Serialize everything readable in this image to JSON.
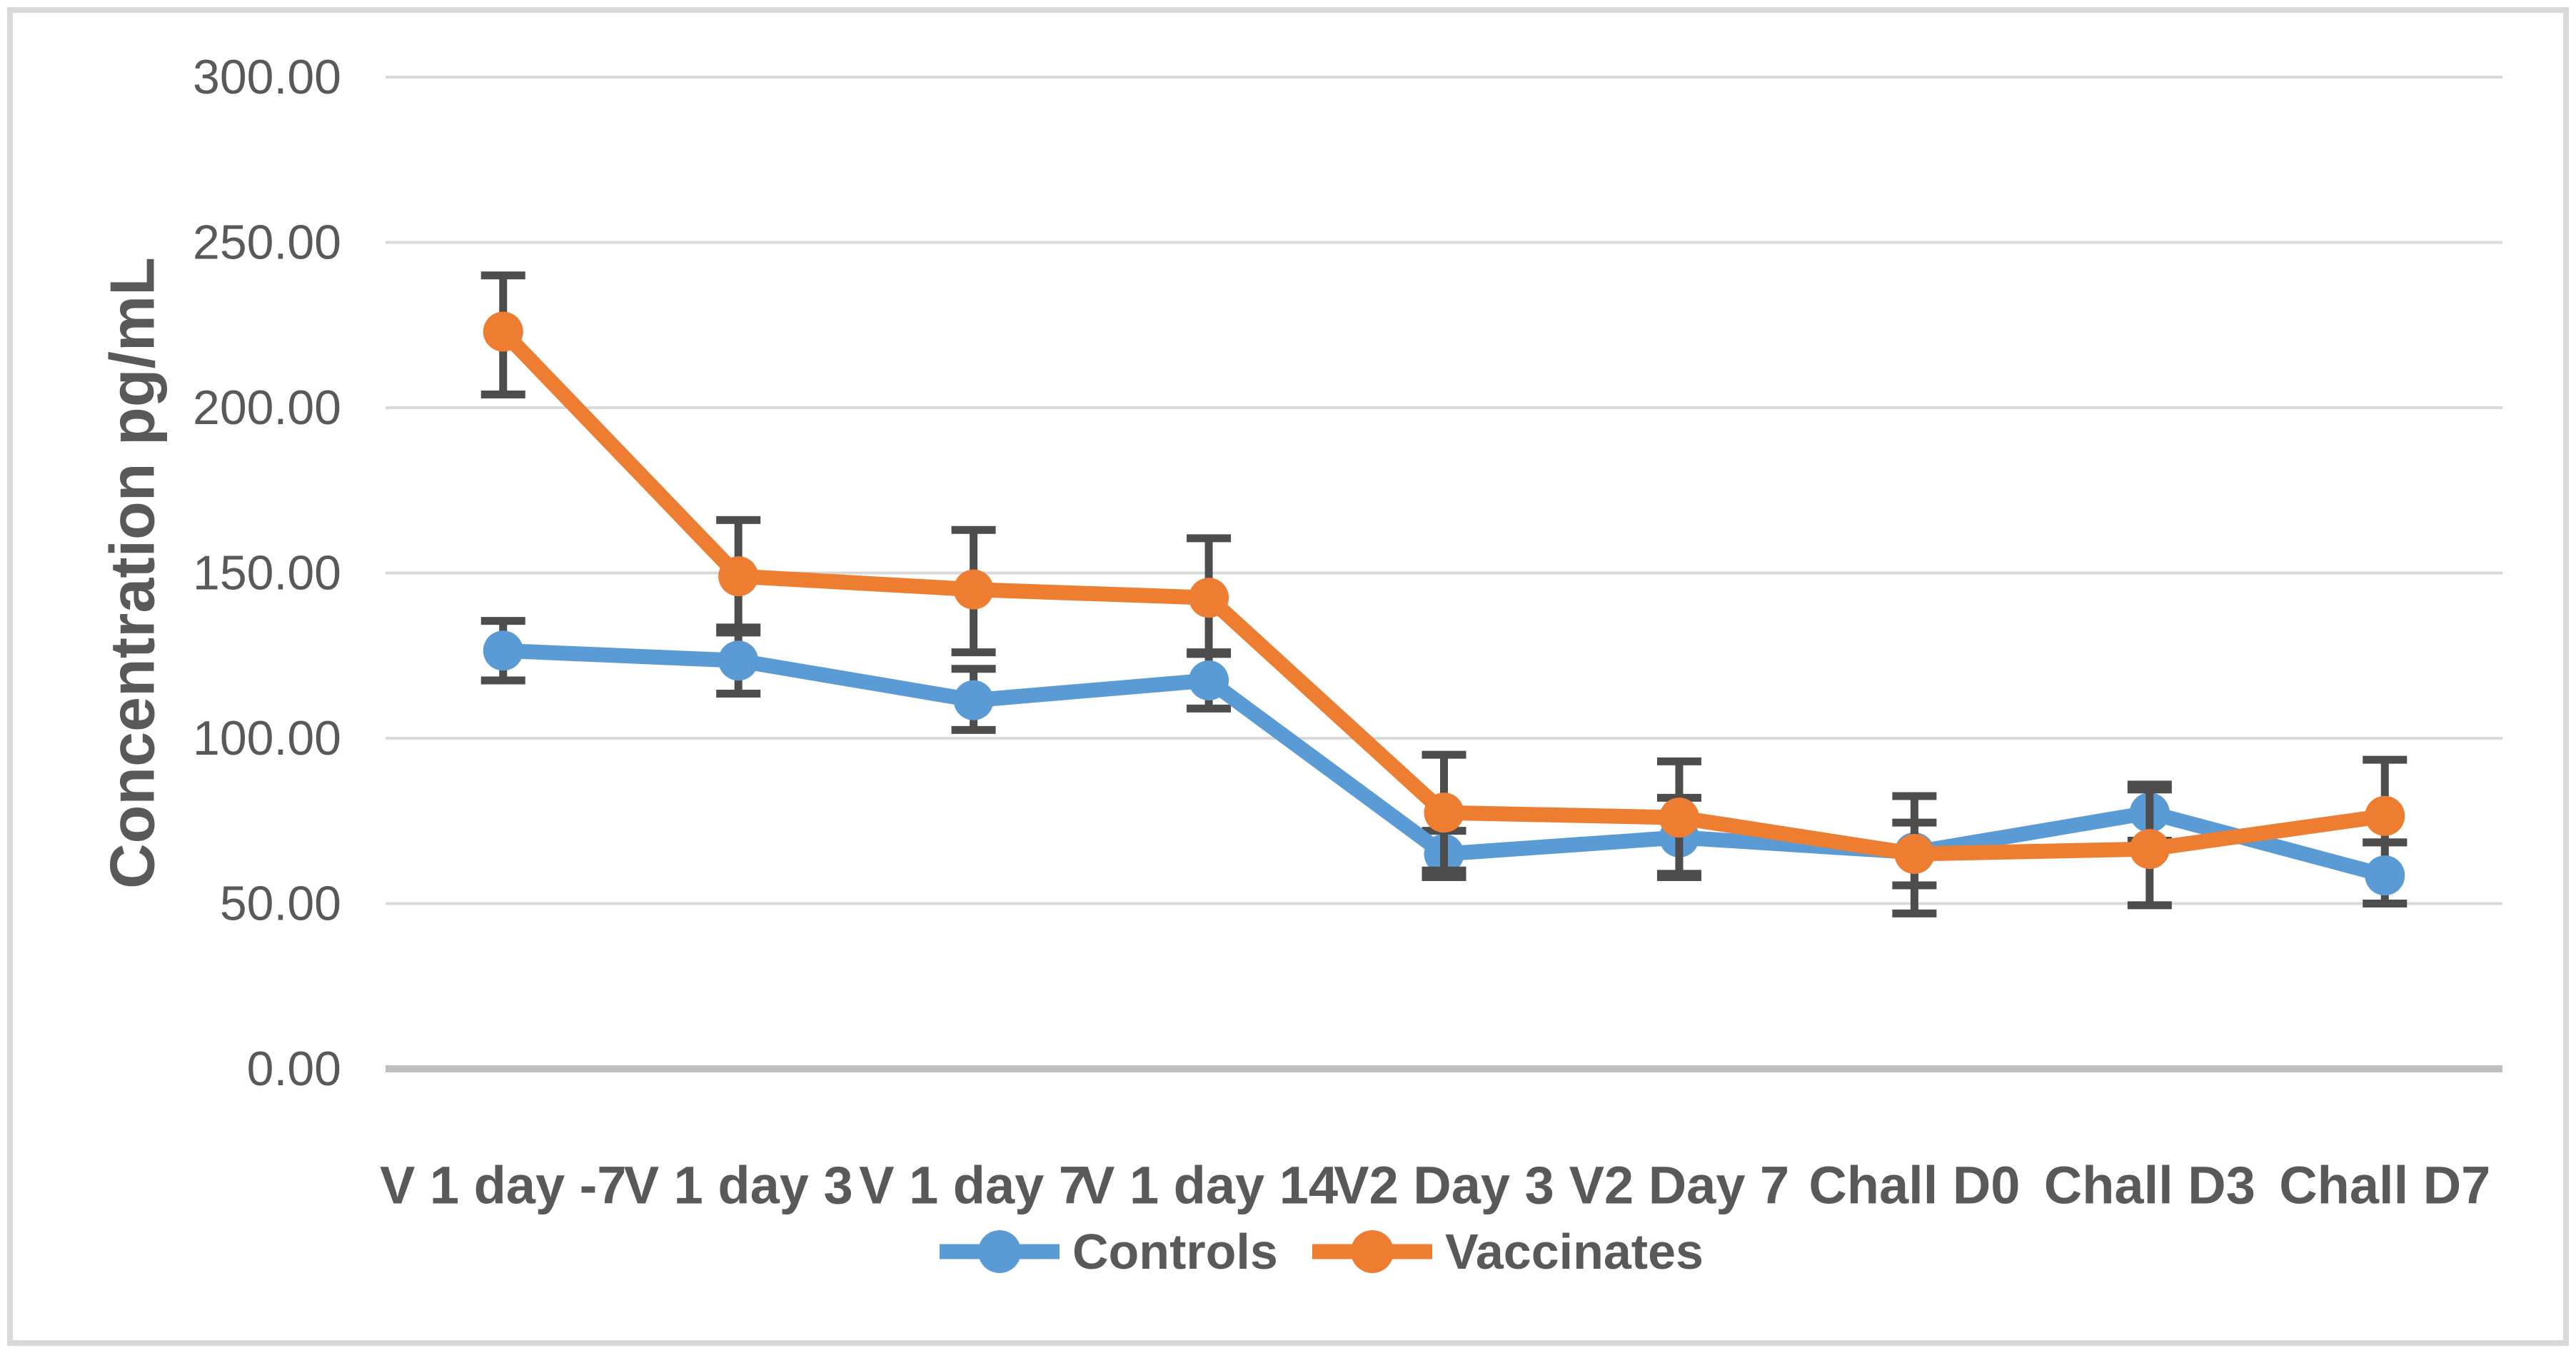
{
  "figure": {
    "background_color": "#FFFFFF",
    "border_color": "#D9D9D9"
  },
  "chart_data": {
    "type": "line",
    "title": "",
    "xlabel": "",
    "ylabel": "Concentration pg/mL",
    "ylim": [
      0,
      300
    ],
    "ytick_step": 50,
    "ytick_labels": [
      "0.00",
      "50.00",
      "100.00",
      "150.00",
      "200.00",
      "250.00",
      "300.00"
    ],
    "grid": true,
    "legend_position": "bottom",
    "categories": [
      "V 1 day -7",
      "V 1 day 3",
      "V 1 day 7",
      "V 1 day 14",
      "V2 Day 3",
      "V2 Day 7",
      "Chall D0",
      "Chall D3",
      "Chall D7"
    ],
    "series": [
      {
        "name": "Controls",
        "color": "#5B9BD5",
        "values": [
          126.5,
          123.5,
          111.5,
          117.5,
          65.0,
          70.0,
          65.5,
          77.5,
          58.5
        ],
        "err_up": [
          9.0,
          10.0,
          9.5,
          8.5,
          7.0,
          12.0,
          9.0,
          8.5,
          10.0
        ],
        "err_down": [
          9.0,
          10.0,
          9.0,
          8.5,
          7.0,
          12.0,
          10.0,
          8.5,
          8.5
        ]
      },
      {
        "name": "Vaccinates",
        "color": "#ED7D31",
        "values": [
          223.0,
          149.0,
          145.0,
          142.5,
          77.5,
          76.0,
          65.0,
          66.5,
          76.5
        ],
        "err_up": [
          17.0,
          17.0,
          18.0,
          18.0,
          17.5,
          17.0,
          17.5,
          18.0,
          17.0
        ],
        "err_down": [
          19.0,
          17.0,
          19.0,
          17.0,
          17.5,
          17.0,
          18.0,
          17.0,
          8.0
        ]
      }
    ],
    "error_bar_color": "#4D4D4D",
    "gridline_color": "#D9D9D9",
    "axis_line_color": "#BFBFBF",
    "text_color": "#595959"
  }
}
